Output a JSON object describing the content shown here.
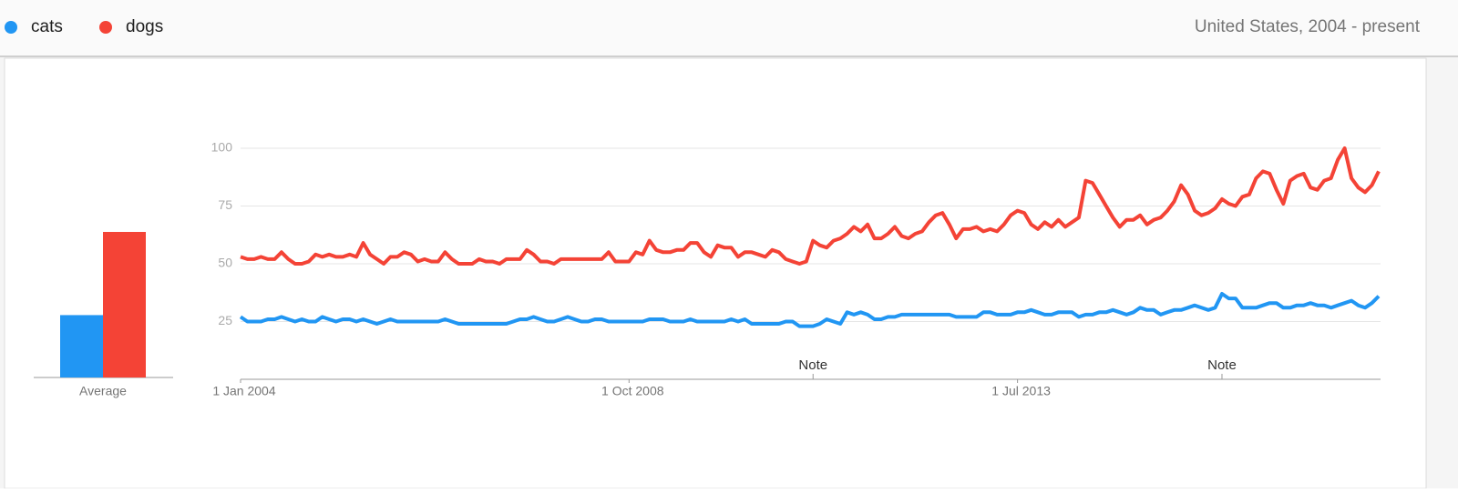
{
  "chart_data": {
    "type": "line",
    "region_label": "United States, 2004 - present",
    "average_label": "Average",
    "average_values": [
      27,
      63
    ],
    "categories": [
      "1 Jan 2004",
      null,
      null,
      null,
      null,
      null,
      null,
      null,
      null,
      null,
      null,
      null,
      null,
      null,
      null,
      null,
      null,
      null,
      null,
      null,
      null,
      null,
      null,
      null,
      null,
      null,
      null,
      null,
      null,
      null,
      null,
      null,
      null,
      null,
      null,
      null,
      null,
      null,
      null,
      null,
      null,
      null,
      null,
      null,
      null,
      null,
      null,
      null,
      null,
      null,
      null,
      null,
      null,
      null,
      null,
      null,
      null,
      "1 Oct 2008",
      null,
      null,
      null,
      null,
      null,
      null,
      null,
      null,
      null,
      null,
      null,
      null,
      null,
      null,
      null,
      null,
      null,
      null,
      null,
      null,
      null,
      null,
      null,
      null,
      null,
      null,
      null,
      null,
      null,
      null,
      null,
      null,
      null,
      null,
      null,
      null,
      null,
      null,
      null,
      null,
      null,
      null,
      null,
      null,
      null,
      null,
      null,
      null,
      null,
      null,
      null,
      null,
      null,
      null,
      null,
      null,
      "1 Jul 2013",
      null,
      null,
      null,
      null,
      null,
      null,
      null,
      null,
      null,
      null,
      null,
      null,
      null,
      null,
      null,
      null,
      null,
      null,
      null,
      null,
      null,
      null,
      null,
      null,
      null,
      null,
      null,
      null,
      null,
      null,
      null,
      null,
      null,
      null,
      null,
      null,
      null,
      null,
      null,
      null,
      null,
      null,
      null,
      null,
      null,
      null,
      null,
      null,
      null,
      null,
      null,
      null,
      null
    ],
    "series": [
      {
        "name": "cats",
        "color": "#2196f3",
        "values": [
          27,
          25,
          25,
          25,
          26,
          26,
          27,
          26,
          25,
          26,
          25,
          25,
          27,
          26,
          25,
          26,
          26,
          25,
          26,
          25,
          24,
          25,
          26,
          25,
          25,
          25,
          25,
          25,
          25,
          25,
          26,
          25,
          24,
          24,
          24,
          24,
          24,
          24,
          24,
          24,
          25,
          26,
          26,
          27,
          26,
          25,
          25,
          26,
          27,
          26,
          25,
          25,
          26,
          26,
          25,
          25,
          25,
          25,
          25,
          25,
          26,
          26,
          26,
          25,
          25,
          25,
          26,
          25,
          25,
          25,
          25,
          25,
          26,
          25,
          26,
          24,
          24,
          24,
          24,
          24,
          25,
          25,
          23,
          23,
          23,
          24,
          26,
          25,
          24,
          29,
          28,
          29,
          28,
          26,
          26,
          27,
          27,
          28,
          28,
          28,
          28,
          28,
          28,
          28,
          28,
          27,
          27,
          27,
          27,
          29,
          29,
          28,
          28,
          28,
          29,
          29,
          30,
          29,
          28,
          28,
          29,
          29,
          29,
          27,
          28,
          28,
          29,
          29,
          30,
          29,
          28,
          29,
          31,
          30,
          30,
          28,
          29,
          30,
          30,
          31,
          32,
          31,
          30,
          31,
          37,
          35,
          35,
          31,
          31,
          31,
          32,
          33,
          33,
          31,
          31,
          32,
          32,
          33,
          32,
          32,
          31,
          32,
          33,
          34,
          32,
          31,
          33,
          36
        ]
      },
      {
        "name": "dogs",
        "color": "#f44336",
        "values": [
          53,
          52,
          52,
          53,
          52,
          52,
          55,
          52,
          50,
          50,
          51,
          54,
          53,
          54,
          53,
          53,
          54,
          53,
          59,
          54,
          52,
          50,
          53,
          53,
          55,
          54,
          51,
          52,
          51,
          51,
          55,
          52,
          50,
          50,
          50,
          52,
          51,
          51,
          50,
          52,
          52,
          52,
          56,
          54,
          51,
          51,
          50,
          52,
          52,
          52,
          52,
          52,
          52,
          52,
          55,
          51,
          51,
          51,
          55,
          54,
          60,
          56,
          55,
          55,
          56,
          56,
          59,
          59,
          55,
          53,
          58,
          57,
          57,
          53,
          55,
          55,
          54,
          53,
          56,
          55,
          52,
          51,
          50,
          51,
          60,
          58,
          57,
          60,
          61,
          63,
          66,
          64,
          67,
          61,
          61,
          63,
          66,
          62,
          61,
          63,
          64,
          68,
          71,
          72,
          67,
          61,
          65,
          65,
          66,
          64,
          65,
          64,
          67,
          71,
          73,
          72,
          67,
          65,
          68,
          66,
          69,
          66,
          68,
          70,
          86,
          85,
          80,
          75,
          70,
          66,
          69,
          69,
          71,
          67,
          69,
          70,
          73,
          77,
          84,
          80,
          73,
          71,
          72,
          74,
          78,
          76,
          75,
          79,
          80,
          87,
          90,
          89,
          82,
          76,
          86,
          88,
          89,
          83,
          82,
          86,
          87,
          95,
          100,
          87,
          83,
          81,
          84,
          90
        ]
      }
    ],
    "annotations": [
      {
        "text": "Note",
        "x": 84
      },
      {
        "text": "Note",
        "x": 144
      }
    ],
    "ylim": [
      0,
      100
    ],
    "yticks": [
      25,
      50,
      75,
      100
    ],
    "grid": true
  }
}
